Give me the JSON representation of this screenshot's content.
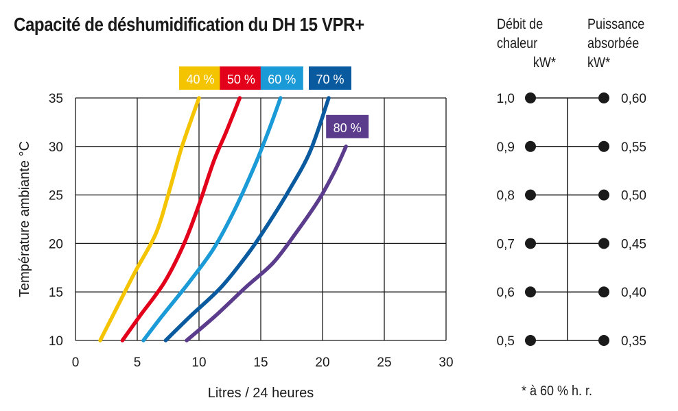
{
  "chart_data": {
    "type": "line",
    "title": "Capacité de déshumidification du DH 15 VPR+",
    "xlabel": "Litres / 24 heures",
    "ylabel": "Température ambiante °C",
    "xlim": [
      0,
      30
    ],
    "ylim": [
      10,
      35
    ],
    "xticks": [
      "0",
      "5",
      "10",
      "15",
      "20",
      "25",
      "30"
    ],
    "yticks": [
      "10",
      "15",
      "20",
      "25",
      "30",
      "35"
    ],
    "grid": true,
    "series": [
      {
        "name": "40 %",
        "color": "#f5c400",
        "points": [
          [
            2.0,
            10
          ],
          [
            3.2,
            13
          ],
          [
            4.8,
            17
          ],
          [
            6.5,
            21
          ],
          [
            7.5,
            25
          ],
          [
            8.5,
            29.5
          ],
          [
            9.3,
            32.5
          ],
          [
            10.0,
            35
          ]
        ]
      },
      {
        "name": "50 %",
        "color": "#e2001a",
        "points": [
          [
            3.8,
            10
          ],
          [
            5.2,
            12.5
          ],
          [
            7.2,
            16
          ],
          [
            8.8,
            20
          ],
          [
            10.0,
            24
          ],
          [
            11.2,
            28.5
          ],
          [
            12.2,
            31.5
          ],
          [
            13.3,
            35
          ]
        ]
      },
      {
        "name": "60 %",
        "color": "#1a9ad6",
        "points": [
          [
            5.5,
            10
          ],
          [
            7.0,
            12.5
          ],
          [
            9.2,
            16
          ],
          [
            11.2,
            19.5
          ],
          [
            12.9,
            23.5
          ],
          [
            14.5,
            28
          ],
          [
            15.6,
            31.5
          ],
          [
            16.6,
            35
          ]
        ]
      },
      {
        "name": "70 %",
        "color": "#0a5aa0",
        "points": [
          [
            7.3,
            10
          ],
          [
            9.3,
            12.5
          ],
          [
            11.8,
            15.5
          ],
          [
            14.0,
            19
          ],
          [
            15.6,
            22
          ],
          [
            17.3,
            25.5
          ],
          [
            19.0,
            29.5
          ],
          [
            20.5,
            35
          ]
        ]
      },
      {
        "name": "80 %",
        "color": "#5a3b8c",
        "points": [
          [
            9.0,
            10
          ],
          [
            11.3,
            12.5
          ],
          [
            13.8,
            15.5
          ],
          [
            16.0,
            18
          ],
          [
            17.8,
            21
          ],
          [
            19.7,
            24.5
          ],
          [
            21.0,
            27.5
          ],
          [
            21.9,
            30
          ]
        ]
      }
    ],
    "annotations": [
      "* à 60 % h. r."
    ]
  },
  "side_scale": {
    "debit": {
      "header": [
        "Débit de",
        "chaleur"
      ],
      "unit": "kW*",
      "values": [
        "1,0",
        "0,9",
        "0,8",
        "0,7",
        "0,6",
        "0,5"
      ]
    },
    "puissance": {
      "header": [
        "Puissance",
        "absorbée"
      ],
      "unit": "kW*",
      "values": [
        "0,60",
        "0,55",
        "0,50",
        "0,45",
        "0,40",
        "0,35"
      ]
    }
  },
  "footnote": "* à 60 % h. r."
}
